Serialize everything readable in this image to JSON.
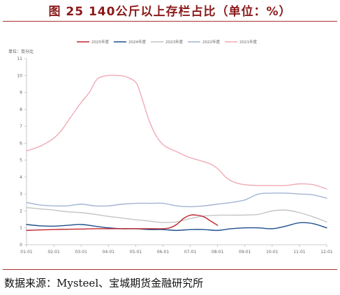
{
  "figure_title": "图 25 140公斤以上存栏占比（单位：%）",
  "source": "数据来源：Mysteel、宝城期货金融研究所",
  "chart_data": {
    "type": "line",
    "title": "图 25 140公斤以上存栏占比（单位：%）",
    "unit_label": "单位：百分比",
    "xlabel": "",
    "ylabel": "",
    "x": [
      "01-01",
      "02-01",
      "03-01",
      "04-01",
      "05-01",
      "06-01",
      "07-01",
      "08-01",
      "09-01",
      "10-01",
      "11-01",
      "12-01"
    ],
    "ylim": [
      0,
      11
    ],
    "yticks": [
      0,
      1,
      2,
      3,
      4,
      5,
      6,
      7,
      8,
      9,
      10,
      11
    ],
    "grid": false,
    "legend_position": "top",
    "series": [
      {
        "name": "2025年度",
        "color": "#c0262d",
        "values": [
          [
            0,
            0.85
          ],
          [
            0.5,
            0.88
          ],
          [
            1,
            0.9
          ],
          [
            1.5,
            0.92
          ],
          [
            2,
            0.93
          ],
          [
            2.5,
            0.95
          ],
          [
            3,
            0.95
          ],
          [
            3.5,
            0.95
          ],
          [
            4,
            0.95
          ],
          [
            4.5,
            0.95
          ],
          [
            5,
            0.95
          ],
          [
            5.25,
            1.0
          ],
          [
            5.5,
            1.2
          ],
          [
            5.75,
            1.55
          ],
          [
            6,
            1.75
          ],
          [
            6.25,
            1.75
          ],
          [
            6.5,
            1.65
          ],
          [
            6.75,
            1.4
          ],
          [
            7,
            1.15
          ]
        ]
      },
      {
        "name": "2024年度",
        "color": "#1f4e8c",
        "values": [
          [
            0,
            1.2
          ],
          [
            0.5,
            1.12
          ],
          [
            1,
            1.1
          ],
          [
            1.5,
            1.15
          ],
          [
            2,
            1.2
          ],
          [
            2.5,
            1.1
          ],
          [
            3,
            1.0
          ],
          [
            3.5,
            0.95
          ],
          [
            4,
            0.95
          ],
          [
            4.5,
            0.9
          ],
          [
            5,
            0.9
          ],
          [
            5.5,
            0.85
          ],
          [
            6,
            0.9
          ],
          [
            6.5,
            0.9
          ],
          [
            7,
            0.85
          ],
          [
            7.5,
            0.95
          ],
          [
            8,
            1.0
          ],
          [
            8.5,
            1.0
          ],
          [
            9,
            0.95
          ],
          [
            9.5,
            1.1
          ],
          [
            10,
            1.3
          ],
          [
            10.5,
            1.25
          ],
          [
            11,
            1.0
          ]
        ]
      },
      {
        "name": "2023年度",
        "color": "#c4c4c4",
        "values": [
          [
            0,
            2.2
          ],
          [
            0.5,
            2.12
          ],
          [
            1,
            2.05
          ],
          [
            1.5,
            1.95
          ],
          [
            2,
            1.9
          ],
          [
            2.5,
            1.8
          ],
          [
            3,
            1.68
          ],
          [
            3.5,
            1.58
          ],
          [
            4,
            1.48
          ],
          [
            4.5,
            1.4
          ],
          [
            5,
            1.32
          ],
          [
            5.5,
            1.35
          ],
          [
            6,
            1.55
          ],
          [
            6.5,
            1.7
          ],
          [
            7,
            1.75
          ],
          [
            7.5,
            1.75
          ],
          [
            8,
            1.76
          ],
          [
            8.5,
            1.8
          ],
          [
            9,
            2.0
          ],
          [
            9.5,
            2.05
          ],
          [
            10,
            1.9
          ],
          [
            10.5,
            1.65
          ],
          [
            11,
            1.35
          ]
        ]
      },
      {
        "name": "2022年度",
        "color": "#a3b4d2",
        "values": [
          [
            0,
            2.5
          ],
          [
            0.5,
            2.35
          ],
          [
            1,
            2.3
          ],
          [
            1.5,
            2.3
          ],
          [
            2,
            2.4
          ],
          [
            2.5,
            2.3
          ],
          [
            3,
            2.3
          ],
          [
            3.5,
            2.4
          ],
          [
            4,
            2.45
          ],
          [
            4.5,
            2.45
          ],
          [
            5,
            2.45
          ],
          [
            5.5,
            2.3
          ],
          [
            6,
            2.25
          ],
          [
            6.5,
            2.3
          ],
          [
            7,
            2.4
          ],
          [
            7.5,
            2.5
          ],
          [
            8,
            2.65
          ],
          [
            8.5,
            3.0
          ],
          [
            9,
            3.05
          ],
          [
            9.5,
            3.05
          ],
          [
            10,
            3.0
          ],
          [
            10.5,
            2.95
          ],
          [
            11,
            2.75
          ]
        ]
      },
      {
        "name": "2021年度",
        "color": "#f0aab6",
        "values": [
          [
            0,
            5.55
          ],
          [
            0.3,
            5.7
          ],
          [
            0.6,
            5.9
          ],
          [
            1,
            6.3
          ],
          [
            1.3,
            6.8
          ],
          [
            1.6,
            7.5
          ],
          [
            2,
            8.4
          ],
          [
            2.3,
            9.0
          ],
          [
            2.6,
            9.8
          ],
          [
            3,
            10.0
          ],
          [
            3.3,
            10.0
          ],
          [
            3.6,
            9.95
          ],
          [
            4,
            9.6
          ],
          [
            4.2,
            8.8
          ],
          [
            4.5,
            7.3
          ],
          [
            4.8,
            6.3
          ],
          [
            5.1,
            5.8
          ],
          [
            5.5,
            5.5
          ],
          [
            5.9,
            5.2
          ],
          [
            6.3,
            5.0
          ],
          [
            6.7,
            4.8
          ],
          [
            7,
            4.5
          ],
          [
            7.3,
            4.0
          ],
          [
            7.6,
            3.7
          ],
          [
            8,
            3.55
          ],
          [
            8.5,
            3.5
          ],
          [
            9,
            3.5
          ],
          [
            9.5,
            3.5
          ],
          [
            10,
            3.6
          ],
          [
            10.5,
            3.55
          ],
          [
            11,
            3.3
          ]
        ]
      }
    ]
  }
}
